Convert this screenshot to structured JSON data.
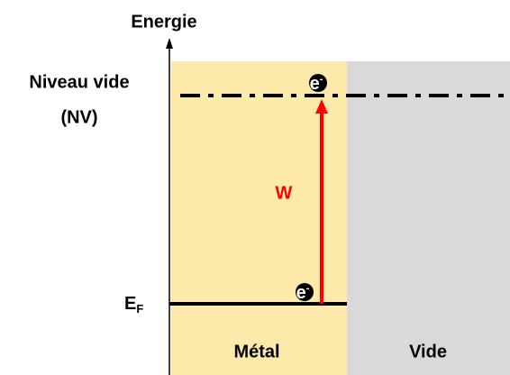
{
  "axis": {
    "label": "Energie"
  },
  "vacuum_level": {
    "label_lines": [
      "Niveau vide",
      "(NV)"
    ]
  },
  "fermi_level": {
    "symbol": "E",
    "subscript": "F"
  },
  "work_function": {
    "label": "W"
  },
  "regions": [
    {
      "label": "Métal"
    },
    {
      "label": "Vide"
    }
  ],
  "electrons": [
    {
      "symbol": "e",
      "charge": "-"
    },
    {
      "symbol": "e",
      "charge": "-"
    }
  ]
}
